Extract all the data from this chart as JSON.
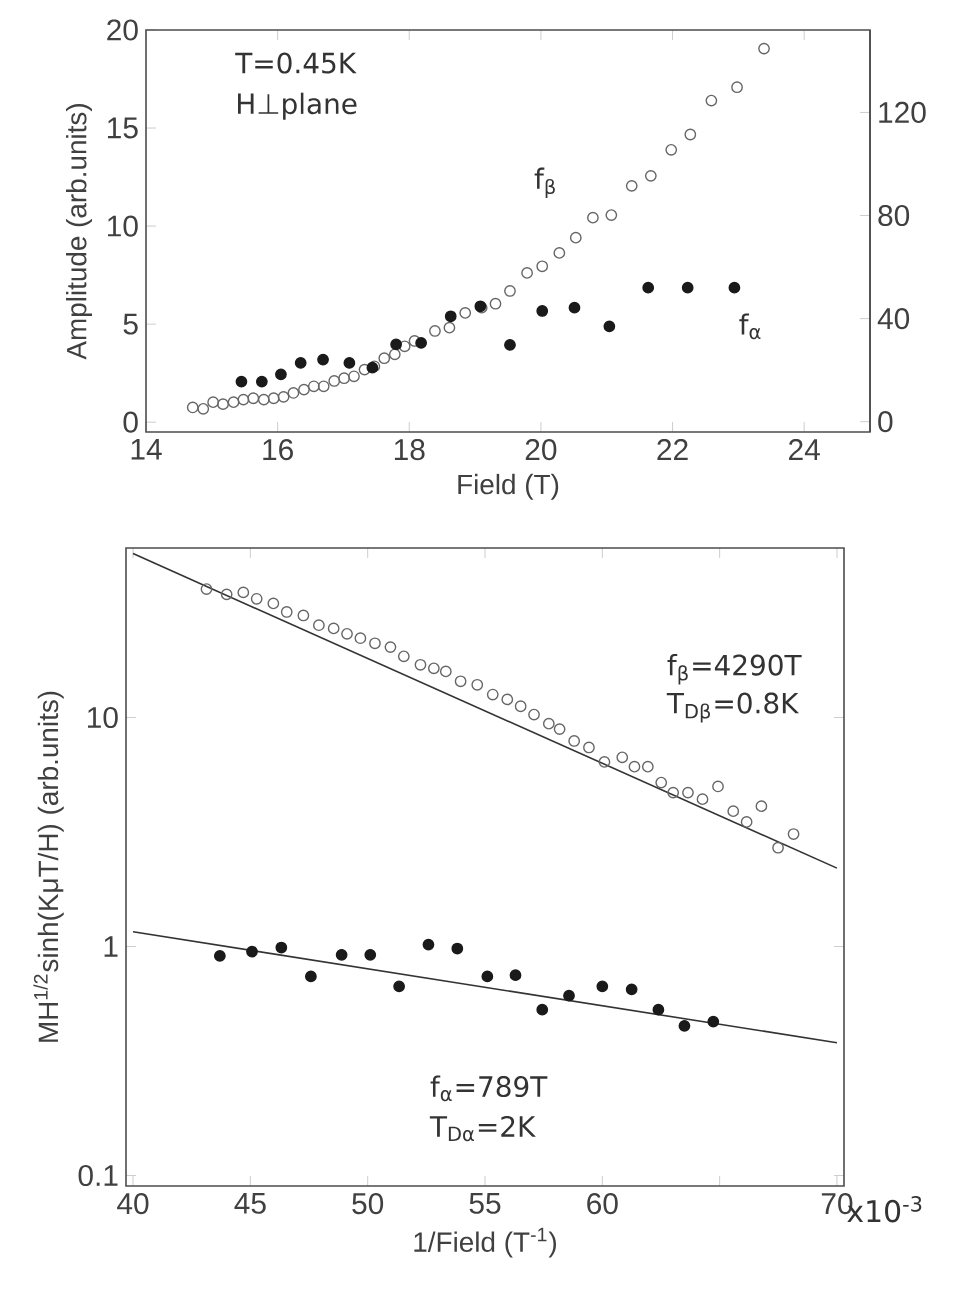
{
  "chart_data": [
    {
      "type": "scatter",
      "xlabel": "Field  (T)",
      "ylabel": "Amplitude  (arb.units)",
      "xlim": [
        14,
        25
      ],
      "xticks": [
        14,
        16,
        18,
        20,
        22,
        24
      ],
      "ylim": [
        -0.5,
        20
      ],
      "yticks": [
        0,
        5,
        10,
        15,
        20
      ],
      "y2lim": [
        -4,
        152
      ],
      "y2ticks": [
        0,
        40,
        80,
        120
      ],
      "annotations": [
        "T=0.45K",
        "H⊥plane",
        "f$_{β}$",
        "f$_{α}$"
      ],
      "series": [
        {
          "color": "#666666",
          "marker": "circle_open",
          "x": [
            14.71,
            14.87,
            15.02,
            15.17,
            15.33,
            15.48,
            15.63,
            15.79,
            15.94,
            16.09,
            16.24,
            16.4,
            16.55,
            16.7,
            16.86,
            17.01,
            17.16,
            17.32,
            17.47,
            17.62,
            17.78,
            17.93,
            18.08,
            18.39,
            18.61,
            18.85,
            19.1,
            19.31,
            19.53,
            19.79,
            20.02,
            20.28,
            20.53,
            20.79,
            21.07,
            21.38,
            21.67,
            21.98,
            22.27,
            22.59,
            22.98,
            23.39
          ],
          "values": [
            0.75,
            0.68,
            1.02,
            0.92,
            1.02,
            1.15,
            1.22,
            1.15,
            1.22,
            1.29,
            1.49,
            1.66,
            1.83,
            1.83,
            2.1,
            2.24,
            2.34,
            2.68,
            2.85,
            3.26,
            3.46,
            3.87,
            4.14,
            4.65,
            4.82,
            5.57,
            5.84,
            6.04,
            6.69,
            7.61,
            7.95,
            8.63,
            9.41,
            10.43,
            10.56,
            12.05,
            12.56,
            13.89,
            14.67,
            16.4,
            17.08,
            19.05
          ]
        },
        {
          "color": "#1a1a1a",
          "marker": "circle",
          "x": [
            15.45,
            15.76,
            16.05,
            16.35,
            16.69,
            17.09,
            17.44,
            17.8,
            18.18,
            18.63,
            19.08,
            19.53,
            20.02,
            20.51,
            21.04,
            21.63,
            22.23,
            22.94
          ],
          "values": [
            2.07,
            2.07,
            2.44,
            3.02,
            3.19,
            3.02,
            2.78,
            3.97,
            4.04,
            5.4,
            5.91,
            3.94,
            5.67,
            5.84,
            4.89,
            6.86,
            6.86,
            6.86
          ]
        }
      ]
    },
    {
      "type": "scatter",
      "xlabel": "1/Field   (T$^{-1}$)",
      "ylabel": "MH$^{1/2}$sinh(KμT/H)   (arb.units)",
      "log": "y",
      "xlim": [
        39.7,
        70.3
      ],
      "xticks": [
        40,
        45,
        50,
        55,
        60,
        {
          "value": 65,
          "label": null
        },
        70
      ],
      "ylim": [
        0.09,
        55
      ],
      "yticks": [
        0.1,
        1,
        10
      ],
      "annotations": [
        "x10$^{-3}$",
        "f$_{β}$=4290T",
        "T$_{Dβ}$=0.8K",
        "f$_{α}$=789T",
        "T$_{Dα}$=2K"
      ],
      "series": [
        {
          "color": "#666666",
          "marker": "circle_open",
          "x": [
            43.13,
            43.99,
            44.7,
            45.27,
            45.98,
            46.55,
            47.26,
            47.92,
            48.55,
            49.12,
            49.69,
            50.31,
            50.97,
            51.54,
            52.25,
            52.82,
            53.33,
            53.96,
            54.67,
            55.33,
            55.95,
            56.52,
            57.09,
            57.72,
            58.18,
            58.8,
            59.43,
            60.09,
            60.85,
            61.37,
            61.94,
            62.51,
            63.02,
            63.65,
            64.27,
            64.93,
            65.58,
            66.15,
            66.78,
            67.49,
            68.15
          ],
          "values": [
            36.4,
            34.5,
            35.2,
            33.0,
            31.5,
            28.9,
            27.9,
            25.3,
            24.5,
            23.2,
            22.2,
            21.1,
            20.3,
            18.5,
            17.0,
            16.4,
            15.9,
            14.4,
            13.9,
            12.6,
            12.0,
            11.2,
            10.3,
            9.4,
            8.9,
            7.9,
            7.4,
            6.4,
            6.7,
            6.1,
            6.1,
            5.2,
            4.7,
            4.7,
            4.4,
            5.0,
            3.9,
            3.5,
            4.1,
            2.7,
            3.1
          ]
        },
        {
          "color": "#1a1a1a",
          "marker": "circle",
          "x": [
            43.7,
            45.07,
            46.32,
            47.58,
            48.89,
            50.11,
            51.34,
            52.59,
            53.82,
            55.1,
            56.3,
            57.44,
            58.58,
            60.0,
            61.25,
            62.39,
            63.5,
            64.73
          ],
          "values": [
            0.91,
            0.95,
            0.99,
            0.74,
            0.92,
            0.92,
            0.67,
            1.02,
            0.98,
            0.74,
            0.75,
            0.53,
            0.61,
            0.67,
            0.65,
            0.53,
            0.45,
            0.47
          ]
        },
        {
          "type": "line",
          "color": "#333333",
          "line_style": "solid",
          "x": [
            40,
            70
          ],
          "values": [
            52,
            2.2
          ]
        },
        {
          "type": "line",
          "color": "#333333",
          "line_style": "solid",
          "x": [
            40,
            70
          ],
          "values": [
            1.16,
            0.38
          ]
        }
      ]
    }
  ]
}
